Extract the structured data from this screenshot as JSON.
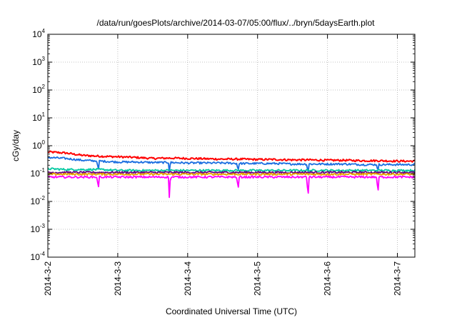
{
  "chart_data": {
    "type": "line",
    "title": "/data/run/goesPlots/archive/2014-03-07/05:00/flux/../bryn/5daysEarth.plot",
    "xlabel": "Coordinated Universal Time (UTC)",
    "ylabel": "cGy/day",
    "y_scale": "log",
    "ylim": [
      0.0001,
      10000
    ],
    "xlim": [
      0,
      5.25
    ],
    "grid": true,
    "legend": "none",
    "y_ticks": [
      {
        "base": "10",
        "exp": "-4"
      },
      {
        "base": "10",
        "exp": "-3"
      },
      {
        "base": "10",
        "exp": "-2"
      },
      {
        "base": "10",
        "exp": "-1"
      },
      {
        "base": "10",
        "exp": "0"
      },
      {
        "base": "10",
        "exp": "1"
      },
      {
        "base": "10",
        "exp": "2"
      },
      {
        "base": "10",
        "exp": "3"
      },
      {
        "base": "10",
        "exp": "4"
      }
    ],
    "x_ticks": [
      {
        "x": 0,
        "label": "2014-3-2"
      },
      {
        "x": 1,
        "label": "2014-3-3"
      },
      {
        "x": 2,
        "label": "2014-3-4"
      },
      {
        "x": 3,
        "label": "2014-3-5"
      },
      {
        "x": 4,
        "label": "2014-3-6"
      },
      {
        "x": 5,
        "label": "2014-3-7"
      }
    ],
    "series": [
      {
        "color": "#ff0000",
        "x": [
          0,
          0.25,
          0.5,
          0.75,
          1,
          1.25,
          1.5,
          1.75,
          2,
          2.25,
          2.5,
          2.75,
          3,
          3.25,
          3.5,
          3.75,
          4,
          4.25,
          4.5,
          4.75,
          5,
          5.25
        ],
        "y": [
          0.6,
          0.55,
          0.45,
          0.42,
          0.4,
          0.38,
          0.35,
          0.36,
          0.35,
          0.34,
          0.33,
          0.33,
          0.32,
          0.32,
          0.31,
          0.31,
          0.3,
          0.3,
          0.29,
          0.29,
          0.28,
          0.28
        ],
        "dips": []
      },
      {
        "color": "#1a6ee0",
        "x": [
          0,
          0.25,
          0.5,
          0.75,
          1,
          1.25,
          1.5,
          1.75,
          2,
          2.25,
          2.5,
          2.75,
          3,
          3.25,
          3.5,
          3.75,
          4,
          4.25,
          4.5,
          4.75,
          5,
          5.25
        ],
        "y": [
          0.38,
          0.35,
          0.3,
          0.28,
          0.26,
          0.26,
          0.25,
          0.25,
          0.24,
          0.24,
          0.24,
          0.23,
          0.23,
          0.23,
          0.22,
          0.22,
          0.22,
          0.22,
          0.21,
          0.21,
          0.21,
          0.21
        ],
        "dips": [
          {
            "x": 0.72,
            "y": 0.09
          },
          {
            "x": 1.74,
            "y": 0.09
          },
          {
            "x": 2.72,
            "y": 0.1
          },
          {
            "x": 3.72,
            "y": 0.08
          },
          {
            "x": 4.72,
            "y": 0.1
          }
        ]
      },
      {
        "color": "#00c8a0",
        "x": [
          0,
          0.25,
          0.5,
          0.75,
          1,
          1.25,
          1.5,
          1.75,
          2,
          2.25,
          2.5,
          2.75,
          3,
          3.25,
          3.5,
          3.75,
          4,
          4.25,
          4.5,
          4.75,
          5,
          5.25
        ],
        "y": [
          0.15,
          0.14,
          0.14,
          0.14,
          0.13,
          0.13,
          0.13,
          0.13,
          0.13,
          0.13,
          0.13,
          0.13,
          0.13,
          0.13,
          0.13,
          0.13,
          0.13,
          0.13,
          0.13,
          0.13,
          0.13,
          0.13
        ],
        "dips": []
      },
      {
        "color": "#6a0080",
        "x": [
          0,
          0.25,
          0.5,
          0.75,
          1,
          1.25,
          1.5,
          1.75,
          2,
          2.25,
          2.5,
          2.75,
          3,
          3.25,
          3.5,
          3.75,
          4,
          4.25,
          4.5,
          4.75,
          5,
          5.25
        ],
        "y": [
          0.11,
          0.11,
          0.11,
          0.11,
          0.11,
          0.11,
          0.11,
          0.11,
          0.11,
          0.11,
          0.11,
          0.11,
          0.11,
          0.11,
          0.11,
          0.11,
          0.11,
          0.11,
          0.11,
          0.11,
          0.11,
          0.11
        ],
        "dips": []
      },
      {
        "color": "#e8a000",
        "x": [
          0,
          0.25,
          0.5,
          0.75,
          1,
          1.25,
          1.5,
          1.75,
          2,
          2.25,
          2.5,
          2.75,
          3,
          3.25,
          3.5,
          3.75,
          4,
          4.25,
          4.5,
          4.75,
          5,
          5.25
        ],
        "y": [
          0.095,
          0.095,
          0.095,
          0.095,
          0.095,
          0.095,
          0.095,
          0.095,
          0.095,
          0.095,
          0.095,
          0.095,
          0.095,
          0.095,
          0.095,
          0.095,
          0.095,
          0.095,
          0.095,
          0.095,
          0.095,
          0.095
        ],
        "dips": []
      },
      {
        "color": "#ff00ff",
        "x": [
          0,
          0.25,
          0.5,
          0.75,
          1,
          1.25,
          1.5,
          1.75,
          2,
          2.25,
          2.5,
          2.75,
          3,
          3.25,
          3.5,
          3.75,
          4,
          4.25,
          4.5,
          4.75,
          5,
          5.25
        ],
        "y": [
          0.075,
          0.075,
          0.075,
          0.075,
          0.075,
          0.075,
          0.075,
          0.075,
          0.075,
          0.075,
          0.075,
          0.075,
          0.075,
          0.075,
          0.075,
          0.075,
          0.075,
          0.075,
          0.075,
          0.075,
          0.075,
          0.075
        ],
        "dips": [
          {
            "x": 0.72,
            "y": 0.02
          },
          {
            "x": 1.74,
            "y": 0.009
          },
          {
            "x": 2.72,
            "y": 0.018
          },
          {
            "x": 3.72,
            "y": 0.008
          },
          {
            "x": 4.72,
            "y": 0.012
          }
        ]
      }
    ]
  }
}
